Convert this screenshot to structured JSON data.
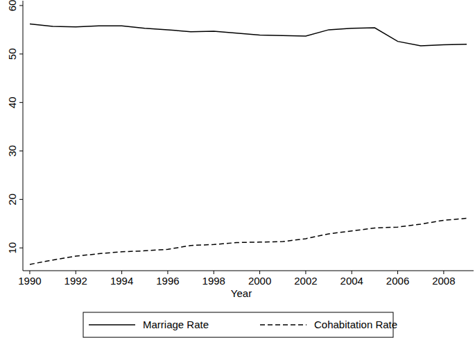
{
  "chart_data": {
    "type": "line",
    "x_label": "Year",
    "x": [
      1990,
      1991,
      1992,
      1993,
      1994,
      1995,
      1996,
      1997,
      1998,
      1999,
      2000,
      2001,
      2002,
      2003,
      2004,
      2005,
      2006,
      2007,
      2008,
      2009
    ],
    "series": [
      {
        "name": "Marriage Rate",
        "color": "#000000",
        "line_style": "solid",
        "values": [
          56.2,
          55.7,
          55.6,
          55.8,
          55.8,
          55.3,
          55.0,
          54.6,
          54.7,
          54.3,
          53.9,
          53.8,
          53.7,
          55.0,
          55.3,
          55.4,
          52.6,
          51.7,
          51.9,
          52.0
        ]
      },
      {
        "name": "Cohabitation Rate",
        "color": "#000000",
        "line_style": "dashed",
        "values": [
          6.6,
          7.5,
          8.3,
          8.8,
          9.2,
          9.4,
          9.7,
          10.5,
          10.7,
          11.1,
          11.2,
          11.3,
          11.9,
          12.9,
          13.5,
          14.1,
          14.3,
          14.9,
          15.7,
          16.1
        ]
      }
    ],
    "xlim": [
      1989.7,
      2009.3
    ],
    "xticks": [
      1990,
      1992,
      1994,
      1996,
      1998,
      2000,
      2002,
      2004,
      2006,
      2008
    ],
    "ylim": [
      5.3,
      61
    ],
    "yticks": [
      10,
      20,
      30,
      40,
      50,
      60
    ],
    "grid": false,
    "legend": "bottom"
  }
}
